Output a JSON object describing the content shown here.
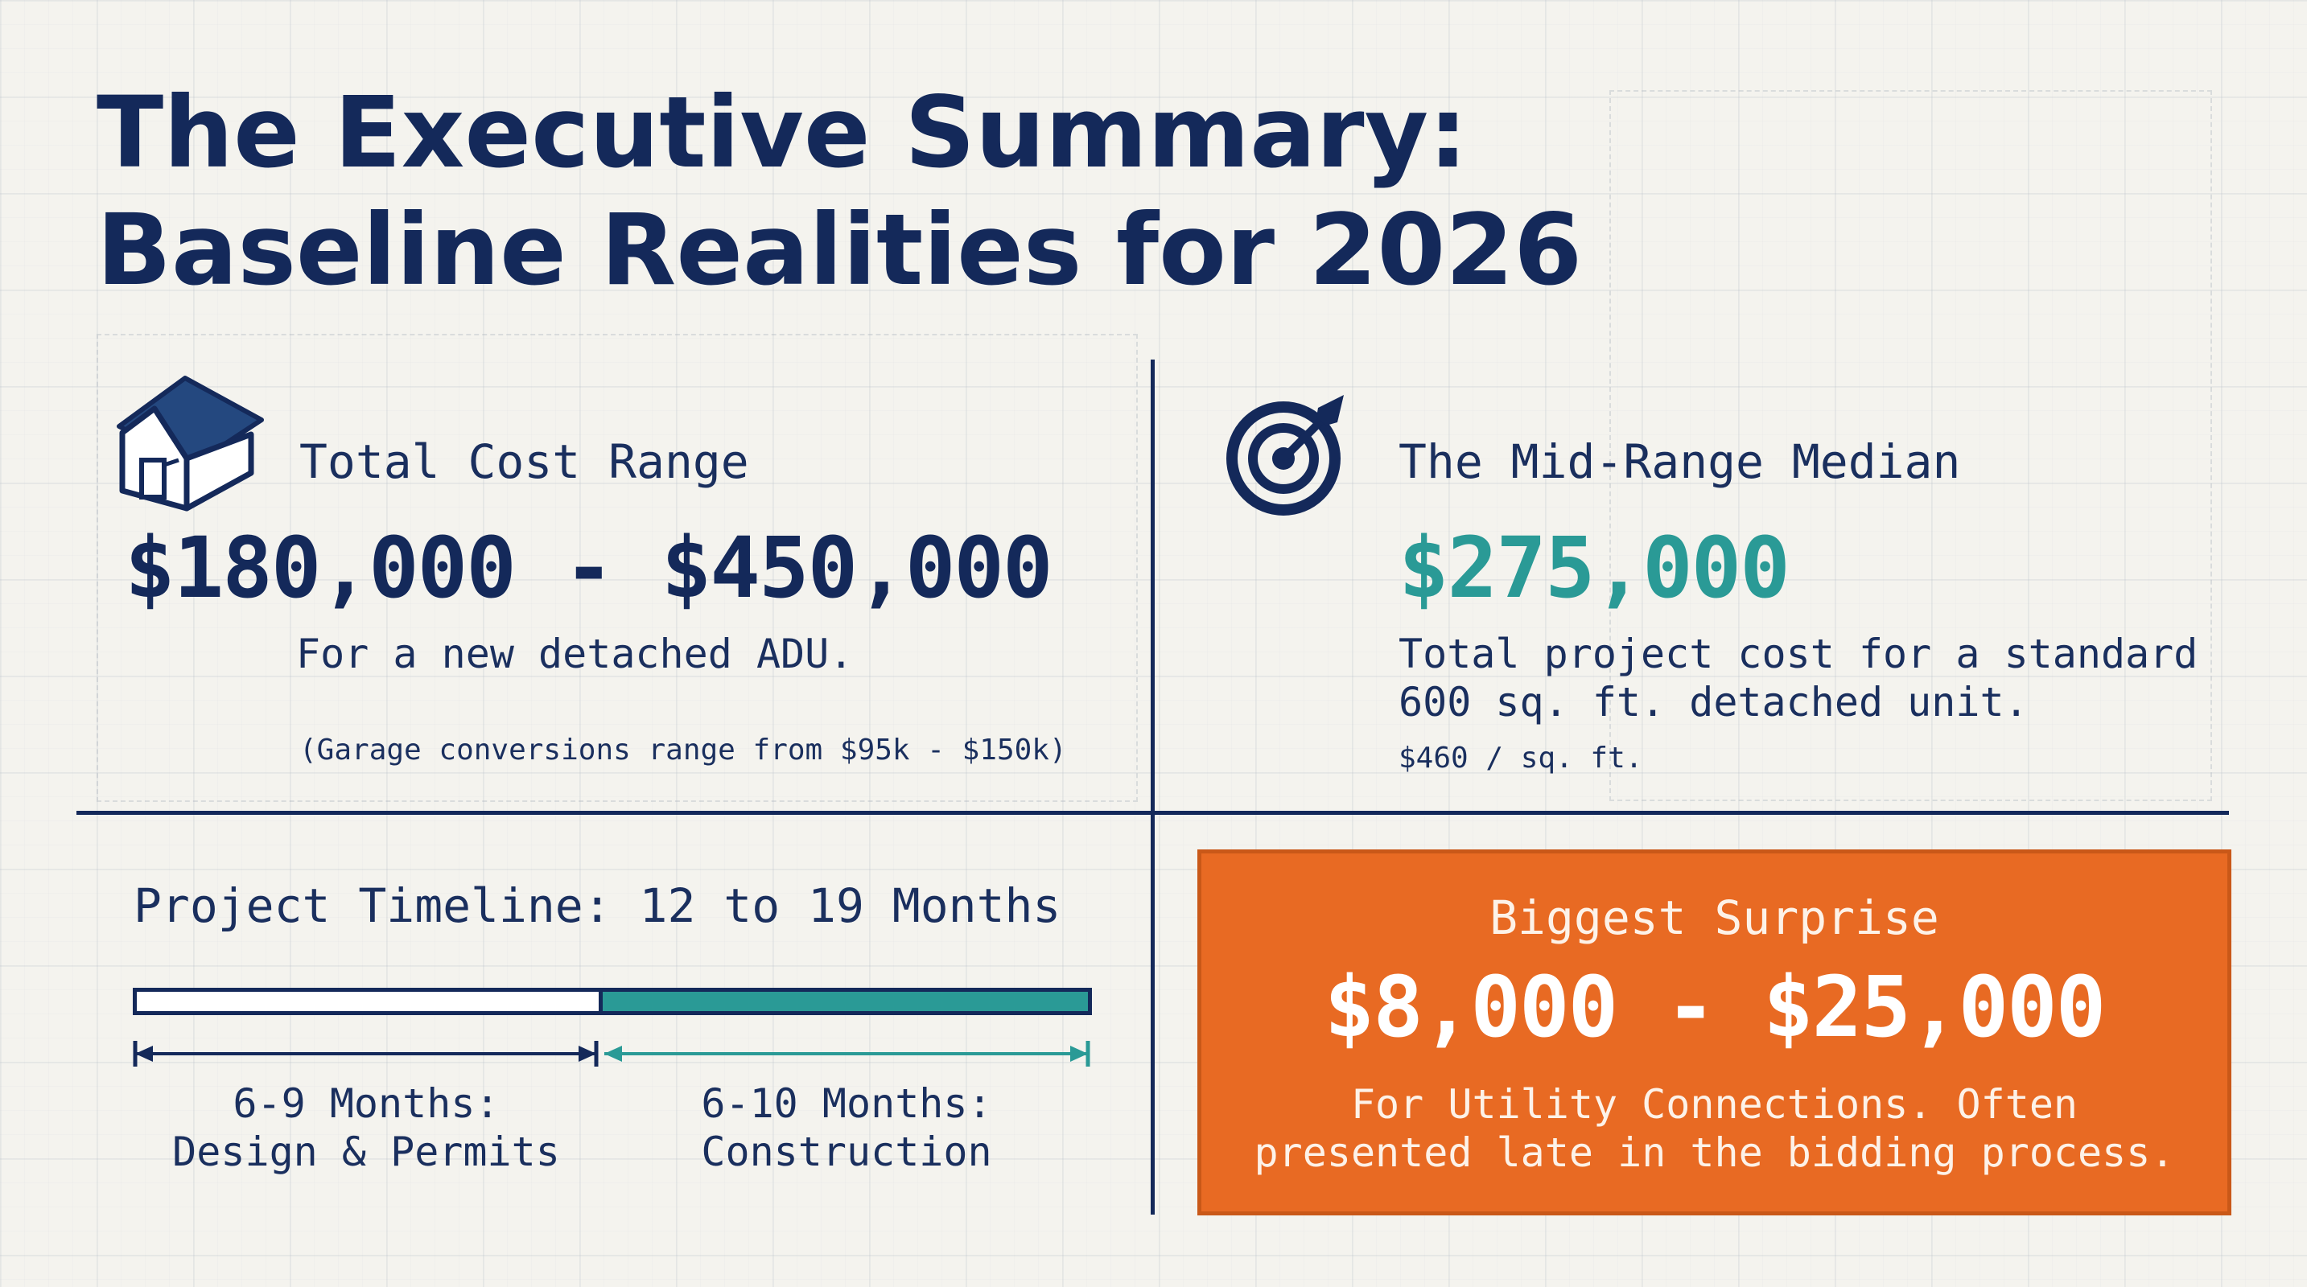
{
  "title": {
    "line1": "The Executive Summary:",
    "line2": "Baseline Realities for 2026"
  },
  "total_cost": {
    "icon": "house-icon",
    "label": "Total Cost Range",
    "value": "$180,000 - $450,000",
    "description": "For a new detached ADU.",
    "note": "(Garage conversions range from $95k - $150k)"
  },
  "median": {
    "icon": "target-icon",
    "label": "The Mid-Range Median",
    "value": "$275,000",
    "description_line1": "Total project cost for a standard",
    "description_line2": "600 sq. ft. detached unit.",
    "note": "$460 / sq. ft."
  },
  "timeline": {
    "label": "Project Timeline: 12 to 19 Months",
    "phases": [
      {
        "line1": "6-9 Months:",
        "line2": "Design & Permits",
        "fraction": 0.487
      },
      {
        "line1": "6-10 Months:",
        "line2": "Construction",
        "fraction": 0.513
      }
    ]
  },
  "surprise": {
    "label": "Biggest Surprise",
    "value": "$8,000 - $25,000",
    "description_line1": "For Utility Connections. Often",
    "description_line2": "presented late in the bidding process."
  },
  "colors": {
    "navy": "#14295a",
    "teal": "#2a9a96",
    "orange": "#e86a23",
    "background": "#f4f3ee"
  }
}
